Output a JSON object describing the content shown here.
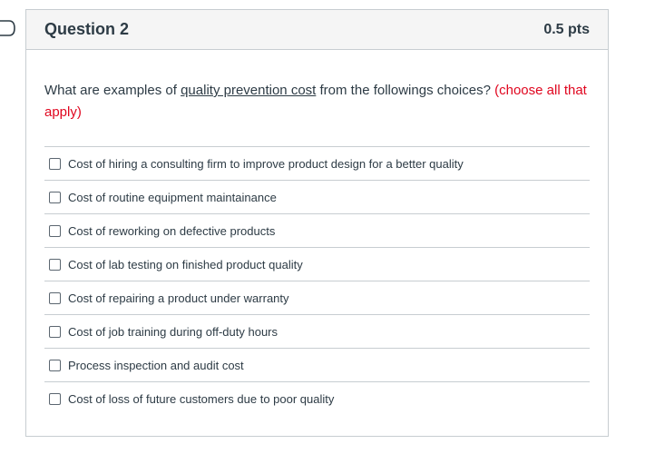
{
  "question": {
    "title": "Question 2",
    "points": "0.5 pts",
    "text_before": "What are examples of ",
    "text_underlined": "quality prevention cost",
    "text_after": " from the followings choices? ",
    "text_note": "(choose all that apply)"
  },
  "answers": [
    {
      "label": "Cost of hiring a consulting firm to improve product design for a better quality",
      "checked": false
    },
    {
      "label": "Cost of routine equipment maintainance",
      "checked": false
    },
    {
      "label": "Cost of reworking on defective products",
      "checked": false
    },
    {
      "label": "Cost of lab testing on finished product quality",
      "checked": false
    },
    {
      "label": "Cost of repairing a product under warranty",
      "checked": false
    },
    {
      "label": "Cost of job training during off-duty hours",
      "checked": false
    },
    {
      "label": "Process inspection and audit cost",
      "checked": false
    },
    {
      "label": "Cost of loss of future customers due to poor quality",
      "checked": false
    }
  ],
  "colors": {
    "accent_note": "#e0061f",
    "text": "#2d3b45",
    "header_bg": "#f5f5f5",
    "border": "#c7cdd1"
  },
  "icons": {
    "flag": "flag-outline-icon"
  }
}
